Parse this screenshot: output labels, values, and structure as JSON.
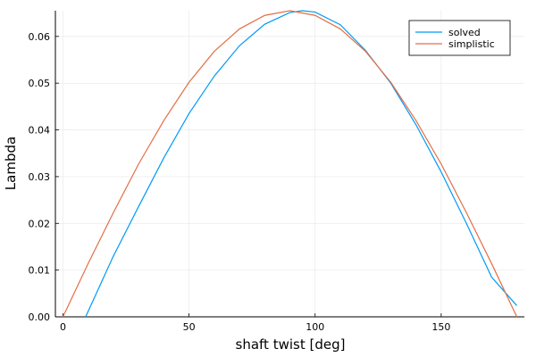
{
  "chart_data": {
    "type": "line",
    "xlabel": "shaft twist [deg]",
    "ylabel": "Lambda",
    "xlim": [
      -3,
      183
    ],
    "ylim": [
      0,
      0.0655
    ],
    "xticks": [
      0,
      50,
      100,
      150
    ],
    "xtick_labels": [
      "0",
      "50",
      "100",
      "150"
    ],
    "yticks": [
      0,
      0.01,
      0.02,
      0.03,
      0.04,
      0.05,
      0.06
    ],
    "ytick_labels": [
      "0.00",
      "0.01",
      "0.02",
      "0.03",
      "0.04",
      "0.05",
      "0.06"
    ],
    "grid": true,
    "legend_position": "top-right",
    "colors": {
      "solved": "#009af9",
      "simplistic": "#e26f46"
    },
    "series": [
      {
        "name": "solved",
        "x": [
          9,
          20,
          30,
          40,
          50,
          60,
          70,
          80,
          90,
          95,
          100,
          110,
          120,
          130,
          140,
          150,
          160,
          170,
          180
        ],
        "y": [
          0,
          0.013,
          0.0236,
          0.034,
          0.0435,
          0.0515,
          0.058,
          0.0626,
          0.0651,
          0.0655,
          0.0652,
          0.0625,
          0.057,
          0.05,
          0.0411,
          0.031,
          0.02,
          0.0085,
          0.0024
        ]
      },
      {
        "name": "simplistic",
        "x": [
          0,
          10,
          20,
          30,
          40,
          50,
          60,
          70,
          80,
          90,
          100,
          110,
          120,
          130,
          140,
          150,
          160,
          170,
          180
        ],
        "y": [
          0,
          0.0114,
          0.0223,
          0.0327,
          0.042,
          0.0502,
          0.0568,
          0.0616,
          0.0645,
          0.0655,
          0.0645,
          0.0616,
          0.0568,
          0.0502,
          0.042,
          0.0327,
          0.0223,
          0.0114,
          0
        ]
      }
    ]
  }
}
